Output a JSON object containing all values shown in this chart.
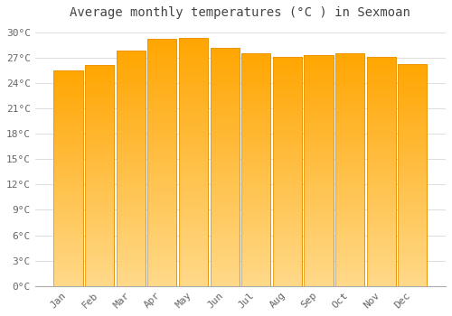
{
  "title": "Average monthly temperatures (°C ) in Sexmoan",
  "months": [
    "Jan",
    "Feb",
    "Mar",
    "Apr",
    "May",
    "Jun",
    "Jul",
    "Aug",
    "Sep",
    "Oct",
    "Nov",
    "Dec"
  ],
  "temperatures": [
    25.5,
    26.1,
    27.8,
    29.2,
    29.3,
    28.2,
    27.5,
    27.1,
    27.3,
    27.5,
    27.1,
    26.2
  ],
  "bar_color_top": "#FFA500",
  "bar_color_bottom": "#FFD070",
  "bar_edge_color": "#E89000",
  "background_color": "#FFFFFF",
  "grid_color": "#DDDDDD",
  "ylim": [
    0,
    31
  ],
  "ytick_step": 3,
  "title_fontsize": 10,
  "tick_fontsize": 8,
  "font_family": "monospace",
  "title_color": "#444444",
  "tick_color": "#666666"
}
